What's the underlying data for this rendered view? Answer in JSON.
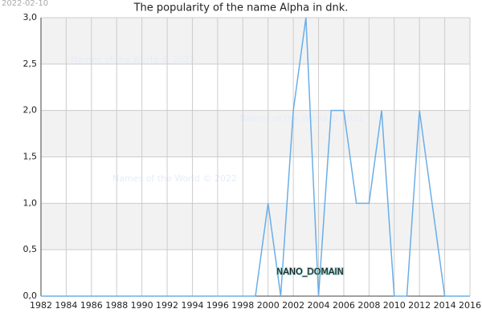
{
  "chart_data": {
    "type": "line",
    "title": "The popularity of the name Alpha in dnk.",
    "date": "2022-02-10",
    "watermarks": [
      "Names of the World © 2022",
      "Names of the World © 2022",
      "Names of the World © 2022"
    ],
    "label": "NANO_DOMAIN",
    "x": [
      1982,
      1983,
      1984,
      1985,
      1986,
      1987,
      1988,
      1989,
      1990,
      1991,
      1992,
      1993,
      1994,
      1995,
      1996,
      1997,
      1998,
      1999,
      2000,
      2001,
      2002,
      2003,
      2004,
      2005,
      2006,
      2007,
      2008,
      2009,
      2010,
      2011,
      2012,
      2013,
      2014,
      2015,
      2016
    ],
    "series": [
      {
        "name": "Alpha",
        "color": "#6aaee8",
        "values": [
          0,
          0,
          0,
          0,
          0,
          0,
          0,
          0,
          0,
          0,
          0,
          0,
          0,
          0,
          0,
          0,
          0,
          0,
          1,
          0,
          2,
          3,
          0,
          2,
          2,
          1,
          1,
          2,
          0,
          0,
          2,
          1,
          0,
          0,
          0
        ]
      }
    ],
    "xlim": [
      1982,
      2016
    ],
    "xticks": [
      1982,
      1984,
      1986,
      1988,
      1990,
      1992,
      1994,
      1996,
      1998,
      2000,
      2002,
      2004,
      2006,
      2008,
      2010,
      2012,
      2014,
      2016
    ],
    "ylim": [
      0,
      3
    ],
    "yticks": [
      {
        "value": 0,
        "label": "0,0"
      },
      {
        "value": 0.5,
        "label": "0,5"
      },
      {
        "value": 1,
        "label": "1,0"
      },
      {
        "value": 1.5,
        "label": "1,5"
      },
      {
        "value": 2,
        "label": "2,0"
      },
      {
        "value": 2.5,
        "label": "2,5"
      },
      {
        "value": 3,
        "label": "3,0"
      }
    ],
    "grid": true
  }
}
